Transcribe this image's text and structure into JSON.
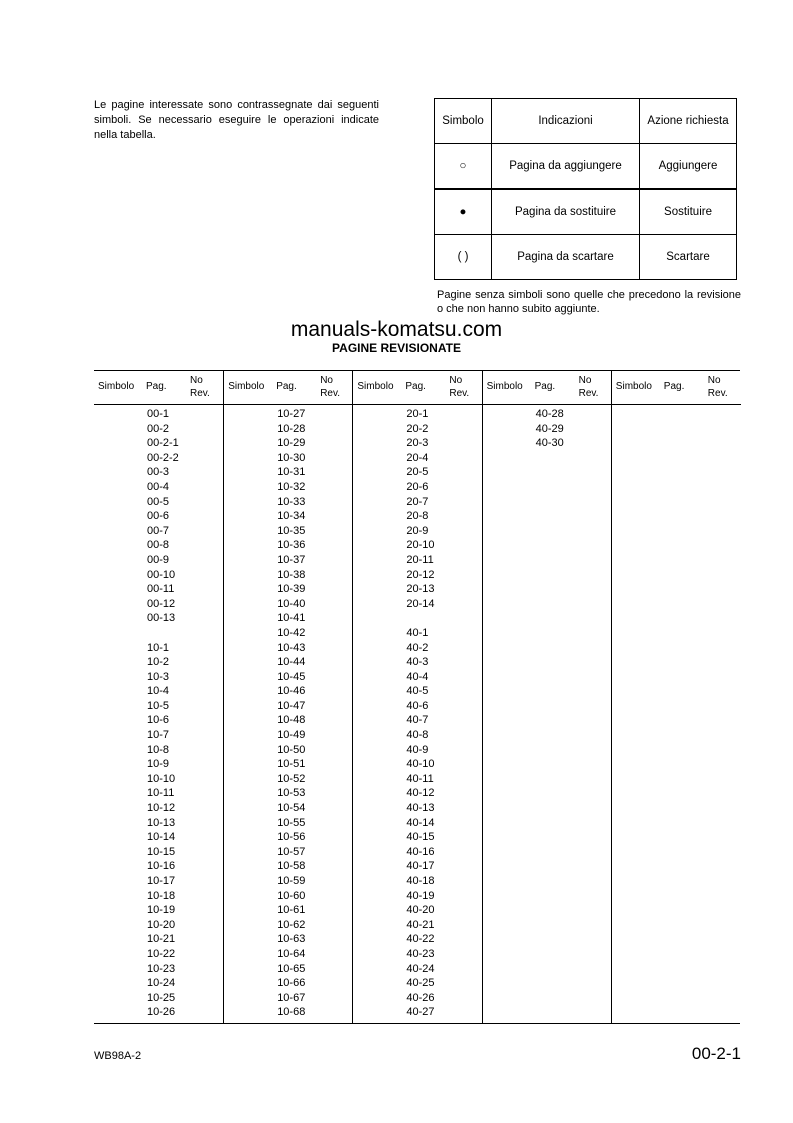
{
  "intro": "Le pagine interessate sono contrassegnate dai seguenti simboli. Se necessario eseguire le operazioni indicate nella tabella.",
  "legend": {
    "headers": [
      "Simbolo",
      "Indicazioni",
      "Azione richiesta"
    ],
    "rows": [
      {
        "symbol": "○",
        "indication": "Pagina da aggiungere",
        "action": "Aggiungere"
      },
      {
        "symbol": "●",
        "indication": "Pagina da sostituire",
        "action": "Sostituire"
      },
      {
        "symbol": "(   )",
        "indication": "Pagina da scartare",
        "action": "Scartare"
      }
    ]
  },
  "note": "Pagine senza simboli sono quelle che precedono la revisione o che non hanno subito aggiunte.",
  "watermark": "manuals-komatsu.com",
  "title": "PAGINE REVISIONATE",
  "revision_table": {
    "headers": {
      "symbol": "Simbolo",
      "page": "Pag.",
      "rev": "No Rev."
    },
    "columns": [
      [
        "00-1",
        "00-2",
        "00-2-1",
        "00-2-2",
        "00-3",
        "00-4",
        "00-5",
        "00-6",
        "00-7",
        "00-8",
        "00-9",
        "00-10",
        "00-11",
        "00-12",
        "00-13",
        "",
        "10-1",
        "10-2",
        "10-3",
        "10-4",
        "10-5",
        "10-6",
        "10-7",
        "10-8",
        "10-9",
        "10-10",
        "10-11",
        "10-12",
        "10-13",
        "10-14",
        "10-15",
        "10-16",
        "10-17",
        "10-18",
        "10-19",
        "10-20",
        "10-21",
        "10-22",
        "10-23",
        "10-24",
        "10-25",
        "10-26"
      ],
      [
        "10-27",
        "10-28",
        "10-29",
        "10-30",
        "10-31",
        "10-32",
        "10-33",
        "10-34",
        "10-35",
        "10-36",
        "10-37",
        "10-38",
        "10-39",
        "10-40",
        "10-41",
        "10-42",
        "10-43",
        "10-44",
        "10-45",
        "10-46",
        "10-47",
        "10-48",
        "10-49",
        "10-50",
        "10-51",
        "10-52",
        "10-53",
        "10-54",
        "10-55",
        "10-56",
        "10-57",
        "10-58",
        "10-59",
        "10-60",
        "10-61",
        "10-62",
        "10-63",
        "10-64",
        "10-65",
        "10-66",
        "10-67",
        "10-68"
      ],
      [
        "20-1",
        "20-2",
        "20-3",
        "20-4",
        "20-5",
        "20-6",
        "20-7",
        "20-8",
        "20-9",
        "20-10",
        "20-11",
        "20-12",
        "20-13",
        "20-14",
        "",
        "40-1",
        "40-2",
        "40-3",
        "40-4",
        "40-5",
        "40-6",
        "40-7",
        "40-8",
        "40-9",
        "40-10",
        "40-11",
        "40-12",
        "40-13",
        "40-14",
        "40-15",
        "40-16",
        "40-17",
        "40-18",
        "40-19",
        "40-20",
        "40-21",
        "40-22",
        "40-23",
        "40-24",
        "40-25",
        "40-26",
        "40-27"
      ],
      [
        "40-28",
        "40-29",
        "40-30"
      ],
      []
    ]
  },
  "footer": {
    "model": "WB98A-2",
    "page": "00-2-1"
  }
}
